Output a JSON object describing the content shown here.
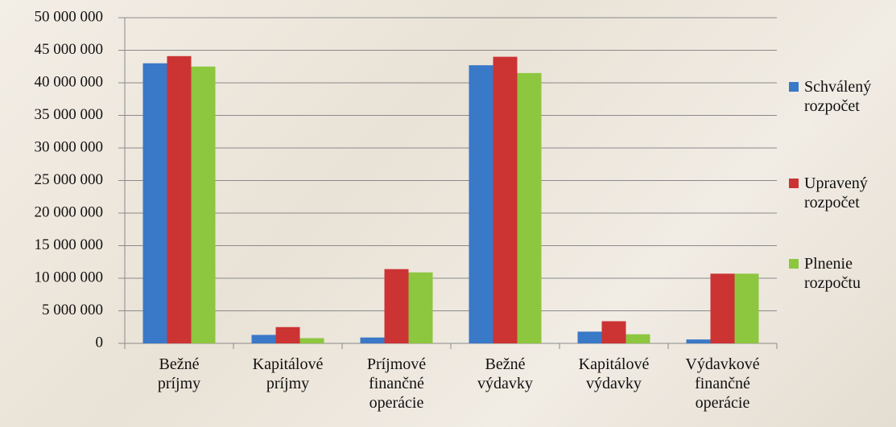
{
  "chart_data": {
    "type": "bar",
    "categories": [
      "Bežné príjmy",
      "Kapitálové príjmy",
      "Príjmové finančné operácie",
      "Bežné výdavky",
      "Kapitálové výdavky",
      "Výdavkové finančné operácie"
    ],
    "series": [
      {
        "name": "Schválený rozpočet",
        "color": "#3a78c8",
        "values": [
          43000000,
          1300000,
          900000,
          42700000,
          1800000,
          600000
        ]
      },
      {
        "name": "Upravený rozpočet",
        "color": "#cc3333",
        "values": [
          44100000,
          2500000,
          11400000,
          44000000,
          3400000,
          10700000
        ]
      },
      {
        "name": "Plnenie rozpočtu",
        "color": "#8dc63f",
        "values": [
          42500000,
          800000,
          10900000,
          41500000,
          1400000,
          10700000
        ]
      }
    ],
    "ylim": [
      0,
      50000000
    ],
    "yticks": [
      0,
      {
        "value": 5000000,
        "label": "5 000 000"
      },
      {
        "value": 10000000,
        "label": "10 000 000"
      },
      {
        "value": 15000000,
        "label": "15 000 000"
      },
      {
        "value": 20000000,
        "label": "20 000 000"
      },
      {
        "value": 25000000,
        "label": "25 000 000"
      },
      {
        "value": 30000000,
        "label": "30 000 000"
      },
      {
        "value": 35000000,
        "label": "35 000 000"
      },
      {
        "value": 40000000,
        "label": "40 000 000"
      },
      {
        "value": 45000000,
        "label": "45 000 000"
      },
      {
        "value": 50000000,
        "label": "50 000 000"
      }
    ],
    "grid": true,
    "legend": "right"
  }
}
